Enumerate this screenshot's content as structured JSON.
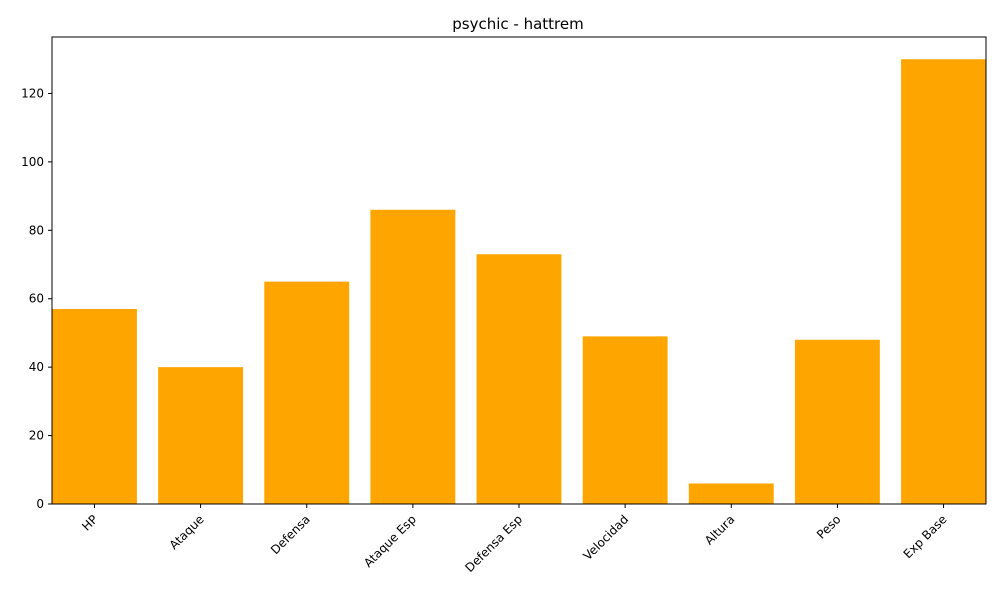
{
  "chart_data": {
    "type": "bar",
    "title": "psychic - hattrem",
    "xlabel": "",
    "ylabel": "",
    "categories": [
      "HP",
      "Ataque",
      "Defensa",
      "Ataque Esp",
      "Defensa Esp",
      "Velocidad",
      "Altura",
      "Peso",
      "Exp Base"
    ],
    "values": [
      57,
      40,
      65,
      86,
      73,
      49,
      6,
      48,
      130
    ],
    "ylim": [
      0,
      136.5
    ],
    "yticks": [
      0,
      20,
      40,
      60,
      80,
      100,
      120
    ],
    "bar_color": "#ffa500",
    "grid": false,
    "legend": "none"
  }
}
